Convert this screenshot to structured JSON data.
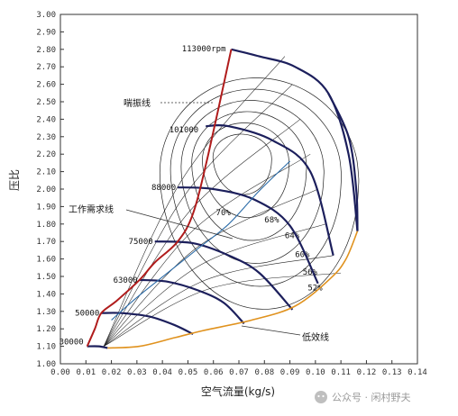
{
  "chart_data": {
    "type": "line",
    "title": "",
    "xlabel": "空气流量(kg/s)",
    "ylabel": "压比",
    "xlim": [
      0.0,
      0.14
    ],
    "ylim": [
      1.0,
      3.0
    ],
    "grid": false,
    "x_ticks": [
      "0.00",
      "0.01",
      "0.02",
      "0.03",
      "0.04",
      "0.05",
      "0.06",
      "0.07",
      "0.08",
      "0.09",
      "0.10",
      "0.11",
      "0.12",
      "0.13",
      "0.14"
    ],
    "y_ticks": [
      "1.00",
      "1.10",
      "1.20",
      "1.30",
      "1.40",
      "1.50",
      "1.60",
      "1.70",
      "1.80",
      "1.90",
      "2.00",
      "2.10",
      "2.20",
      "2.30",
      "2.40",
      "2.50",
      "2.60",
      "2.70",
      "2.80",
      "2.90",
      "3.00"
    ],
    "surge_line": {
      "name": "喘振线",
      "color": "#b01c1c",
      "x": [
        0.0105,
        0.0135,
        0.016,
        0.022,
        0.031,
        0.037,
        0.046,
        0.052,
        0.058,
        0.067
      ],
      "y": [
        1.1,
        1.2,
        1.29,
        1.36,
        1.48,
        1.58,
        1.7,
        1.86,
        2.2,
        2.8
      ]
    },
    "choke_line": {
      "name": "低效线",
      "color": "#e0921e",
      "x": [
        0.0185,
        0.031,
        0.045,
        0.056,
        0.075,
        0.092,
        0.106,
        0.112,
        0.1165
      ],
      "y": [
        1.09,
        1.1,
        1.15,
        1.19,
        1.25,
        1.33,
        1.49,
        1.6,
        1.76
      ]
    },
    "demand_line": {
      "name": "工作需求线",
      "color": "#2c6ca8",
      "x": [
        0.02,
        0.03,
        0.042,
        0.054,
        0.066,
        0.078,
        0.09
      ],
      "y": [
        1.25,
        1.38,
        1.52,
        1.66,
        1.8,
        1.99,
        2.16
      ]
    },
    "speed_lines": [
      {
        "label": "30000",
        "x": [
          0.0105,
          0.015,
          0.0185
        ],
        "y": [
          1.1,
          1.1,
          1.09
        ]
      },
      {
        "label": "50000",
        "x": [
          0.016,
          0.024,
          0.035,
          0.045,
          0.052
        ],
        "y": [
          1.29,
          1.29,
          1.27,
          1.22,
          1.17
        ]
      },
      {
        "label": "63000",
        "x": [
          0.031,
          0.042,
          0.054,
          0.064,
          0.072
        ],
        "y": [
          1.48,
          1.47,
          1.42,
          1.35,
          1.23
        ]
      },
      {
        "label": "75000",
        "x": [
          0.037,
          0.052,
          0.066,
          0.078,
          0.091
        ],
        "y": [
          1.7,
          1.69,
          1.62,
          1.52,
          1.31
        ]
      },
      {
        "label": "88000",
        "x": [
          0.046,
          0.06,
          0.076,
          0.09,
          0.101
        ],
        "y": [
          2.01,
          2.0,
          1.94,
          1.79,
          1.46
        ]
      },
      {
        "label": "101000",
        "x": [
          0.057,
          0.066,
          0.083,
          0.098,
          0.107
        ],
        "y": [
          2.36,
          2.36,
          2.28,
          2.1,
          1.62
        ]
      },
      {
        "label": "113000rpm",
        "x": [
          0.067,
          0.078,
          0.092,
          0.105,
          0.113,
          0.1165
        ],
        "y": [
          2.8,
          2.76,
          2.7,
          2.55,
          2.2,
          1.76
        ]
      }
    ],
    "efficiency_labels": [
      {
        "label": "70%",
        "x": 0.061,
        "y": 1.85
      },
      {
        "label": "68%",
        "x": 0.08,
        "y": 1.81
      },
      {
        "label": "64%",
        "x": 0.088,
        "y": 1.72
      },
      {
        "label": "60%",
        "x": 0.092,
        "y": 1.61
      },
      {
        "label": "56%",
        "x": 0.095,
        "y": 1.51
      },
      {
        "label": "52%",
        "x": 0.097,
        "y": 1.42
      }
    ],
    "annotations": {
      "surge": "喘振线",
      "demand": "工作需求线",
      "choke": "低效线"
    }
  },
  "watermark": "公众号 · 闲村野夫",
  "colors": {
    "surge": "#b01c1c",
    "speed": "#1c1f5c",
    "demand": "#2c6ca8",
    "choke": "#e0921e",
    "axis": "#333333"
  }
}
